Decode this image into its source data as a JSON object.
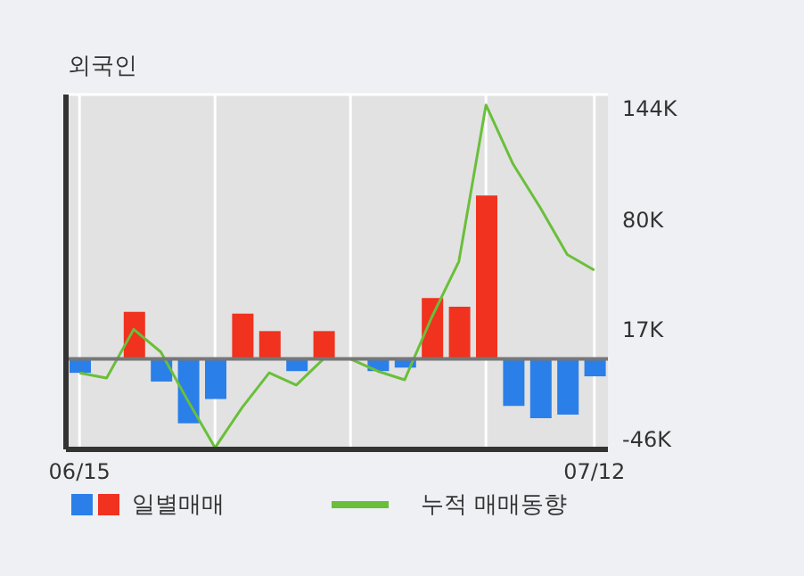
{
  "chart_data": {
    "type": "bar",
    "title": "외국인",
    "categories": [
      "06/15",
      null,
      null,
      null,
      null,
      null,
      null,
      null,
      null,
      null,
      null,
      null,
      null,
      null,
      null,
      null,
      null,
      null,
      null,
      "07/12"
    ],
    "series": [
      {
        "name": "일별매매",
        "colors": [
          "#2a7fe8",
          "#2a7fe8",
          "#f0321e",
          "#2a7fe8",
          "#2a7fe8",
          "#2a7fe8",
          "#f0321e",
          "#f0321e",
          "#2a7fe8",
          "#f0321e",
          "#2a7fe8",
          "#2a7fe8",
          "#2a7fe8",
          "#f0321e",
          "#f0321e",
          "#f0321e",
          "#2a7fe8",
          "#2a7fe8",
          "#2a7fe8",
          "#2a7fe8"
        ],
        "values": [
          -8,
          0,
          27,
          -13,
          -37,
          -23,
          26,
          16,
          -7,
          16,
          0,
          -7,
          -5,
          35,
          30,
          94,
          -27,
          -34,
          -32,
          -10
        ]
      },
      {
        "name": "누적 매매동향",
        "type": "line",
        "color": "#6abf3a",
        "values": [
          -8,
          -11,
          17,
          4,
          -24,
          -51,
          -28,
          -8,
          -15,
          0,
          0,
          -7,
          -12,
          24,
          56,
          146,
          112,
          87,
          60,
          51
        ]
      }
    ],
    "ylim": [
      -52,
      152
    ],
    "yticks": [
      {
        "value": -46,
        "label": "-46K"
      },
      {
        "value": 17,
        "label": "17K"
      },
      {
        "value": 80,
        "label": "80K"
      },
      {
        "value": 144,
        "label": "144K"
      }
    ],
    "ref_lines": [
      {
        "axis": "y",
        "value": 0,
        "color": "#777777"
      }
    ],
    "grid": true,
    "legend": "bottom",
    "marker": "none",
    "line_style": "solid"
  }
}
